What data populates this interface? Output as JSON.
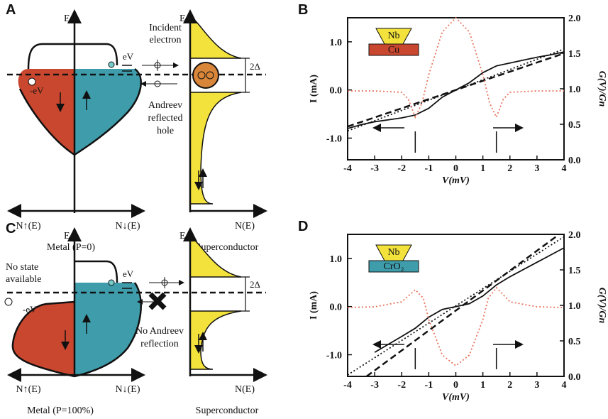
{
  "diagrams": [
    {
      "panel_label": "A",
      "energy_axis": "E",
      "incident": [
        "Incident",
        "electron"
      ],
      "ev": "eV",
      "neg_ev": "-eV",
      "gap": "2Δ",
      "reflection": [
        "Andreev",
        "reflected",
        "hole"
      ],
      "n_up": "N↑(E)",
      "n_down": "N↓(E)",
      "sc_energy_axis": "E",
      "sc_dos": "N(E)",
      "metal_caption": "Metal (P=0)",
      "sc_caption": "Superconductor"
    },
    {
      "panel_label": "C",
      "energy_axis": "E",
      "no_state": [
        "No state",
        "available"
      ],
      "ev": "eV",
      "neg_ev": "-eV",
      "gap": "2Δ",
      "reflection": [
        "No Andreev",
        "reflection"
      ],
      "n_up": "N↑(E)",
      "n_down": "N↓(E)",
      "sc_energy_axis": "E",
      "sc_dos": "N(E)",
      "metal_caption": "Metal (P=100%)",
      "sc_caption": "Superconductor"
    }
  ],
  "chart_data": [
    {
      "type": "line",
      "panel_label": "B",
      "xlabel": "V(mV)",
      "ylabel": "I (mA)",
      "y2label": "G(V)/Gn",
      "inset_labels": [
        "Nb",
        "Cu"
      ],
      "xlim": [
        -4,
        4
      ],
      "xticks": [
        -4,
        -3,
        -2,
        -1,
        0,
        1,
        2,
        3,
        4
      ],
      "ylim": [
        -1.45,
        1.5
      ],
      "yticks": [
        {
          "value": -1,
          "label": "-1.0"
        },
        {
          "value": 0,
          "label": "0.0"
        },
        {
          "value": 1,
          "label": "1.0"
        }
      ],
      "y2lim": [
        0,
        2
      ],
      "y2ticks": [
        {
          "value": 0,
          "label": "0.0"
        },
        {
          "value": 0.5,
          "label": "0.5"
        },
        {
          "value": 1,
          "label": "1.0"
        },
        {
          "value": 1.5,
          "label": "1.5"
        },
        {
          "value": 2,
          "label": "2.0"
        }
      ],
      "gap_markers": [
        -1.5,
        1.5
      ],
      "series": [
        {
          "color": "#111111",
          "dash": "solid",
          "x": [
            -4,
            -3.5,
            -3,
            -2.5,
            -2,
            -1.5,
            -1,
            -0.5,
            0,
            0.5,
            1,
            1.5,
            2,
            2.5,
            3,
            3.5,
            4
          ],
          "values": [
            -0.8,
            -0.72,
            -0.66,
            -0.62,
            -0.58,
            -0.52,
            -0.38,
            -0.15,
            0,
            0.15,
            0.36,
            0.5,
            0.56,
            0.62,
            0.68,
            0.73,
            0.79
          ]
        },
        {
          "color": "#111111",
          "dash": "dashed",
          "x": [
            -4,
            4
          ],
          "values": [
            -0.76,
            0.76
          ]
        },
        {
          "color": "#111111",
          "dash": "dotted",
          "x": [
            -4,
            4
          ],
          "values": [
            -0.85,
            0.85
          ]
        },
        {
          "color": "#e8735a",
          "dash": "dotted",
          "axis": "y2",
          "x": [
            -4,
            -3,
            -2,
            -1.75,
            -1.5,
            -1.25,
            -1,
            -0.5,
            0,
            0.5,
            1,
            1.25,
            1.5,
            1.75,
            2,
            3,
            4
          ],
          "values": [
            0.97,
            0.97,
            0.95,
            0.85,
            0.6,
            0.8,
            1.2,
            1.8,
            2.0,
            1.8,
            1.2,
            0.8,
            0.6,
            0.85,
            0.95,
            0.97,
            0.97
          ]
        }
      ]
    },
    {
      "type": "line",
      "panel_label": "D",
      "xlabel": "V(mV)",
      "ylabel": "I (mA)",
      "y2label": "G(V)/Gn",
      "inset_labels": [
        "Nb",
        "CrO₂"
      ],
      "xlim": [
        -4,
        4
      ],
      "xticks": [
        -4,
        -3,
        -2,
        -1,
        0,
        1,
        2,
        3,
        4
      ],
      "ylim": [
        -1.45,
        1.5
      ],
      "yticks": [
        {
          "value": -1,
          "label": "-1.0"
        },
        {
          "value": 0,
          "label": "0.0"
        },
        {
          "value": 1,
          "label": "1.0"
        }
      ],
      "y2lim": [
        0,
        2
      ],
      "y2ticks": [
        {
          "value": 0,
          "label": "0.0"
        },
        {
          "value": 0.5,
          "label": "0.5"
        },
        {
          "value": 1,
          "label": "1.0"
        },
        {
          "value": 1.5,
          "label": "1.5"
        },
        {
          "value": 2,
          "label": "2.0"
        }
      ],
      "gap_markers": [
        -1.5,
        1.5
      ],
      "series": [
        {
          "color": "#111111",
          "dash": "solid",
          "x": [
            -3,
            -2,
            -1.5,
            -1,
            -0.5,
            0,
            0.5,
            1,
            1.5,
            2,
            3,
            4
          ],
          "values": [
            -0.95,
            -0.62,
            -0.45,
            -0.22,
            -0.06,
            0,
            0.06,
            0.22,
            0.45,
            0.62,
            0.92,
            1.22
          ]
        },
        {
          "color": "#111111",
          "dash": "dashed",
          "x": [
            -3.3,
            3.7
          ],
          "values": [
            -1.45,
            1.45
          ]
        },
        {
          "color": "#111111",
          "dash": "dotted",
          "x": [
            -4,
            4
          ],
          "values": [
            -1.42,
            1.45
          ]
        },
        {
          "color": "#e8735a",
          "dash": "dotted",
          "axis": "y2",
          "x": [
            -4,
            -3,
            -2,
            -1.5,
            -1.2,
            -1,
            -0.5,
            0,
            0.5,
            1,
            1.2,
            1.5,
            2,
            3,
            4
          ],
          "values": [
            0.97,
            0.98,
            1.05,
            1.22,
            1.1,
            0.8,
            0.3,
            0.15,
            0.3,
            0.8,
            1.1,
            1.25,
            1.05,
            0.98,
            0.97
          ]
        }
      ]
    }
  ]
}
